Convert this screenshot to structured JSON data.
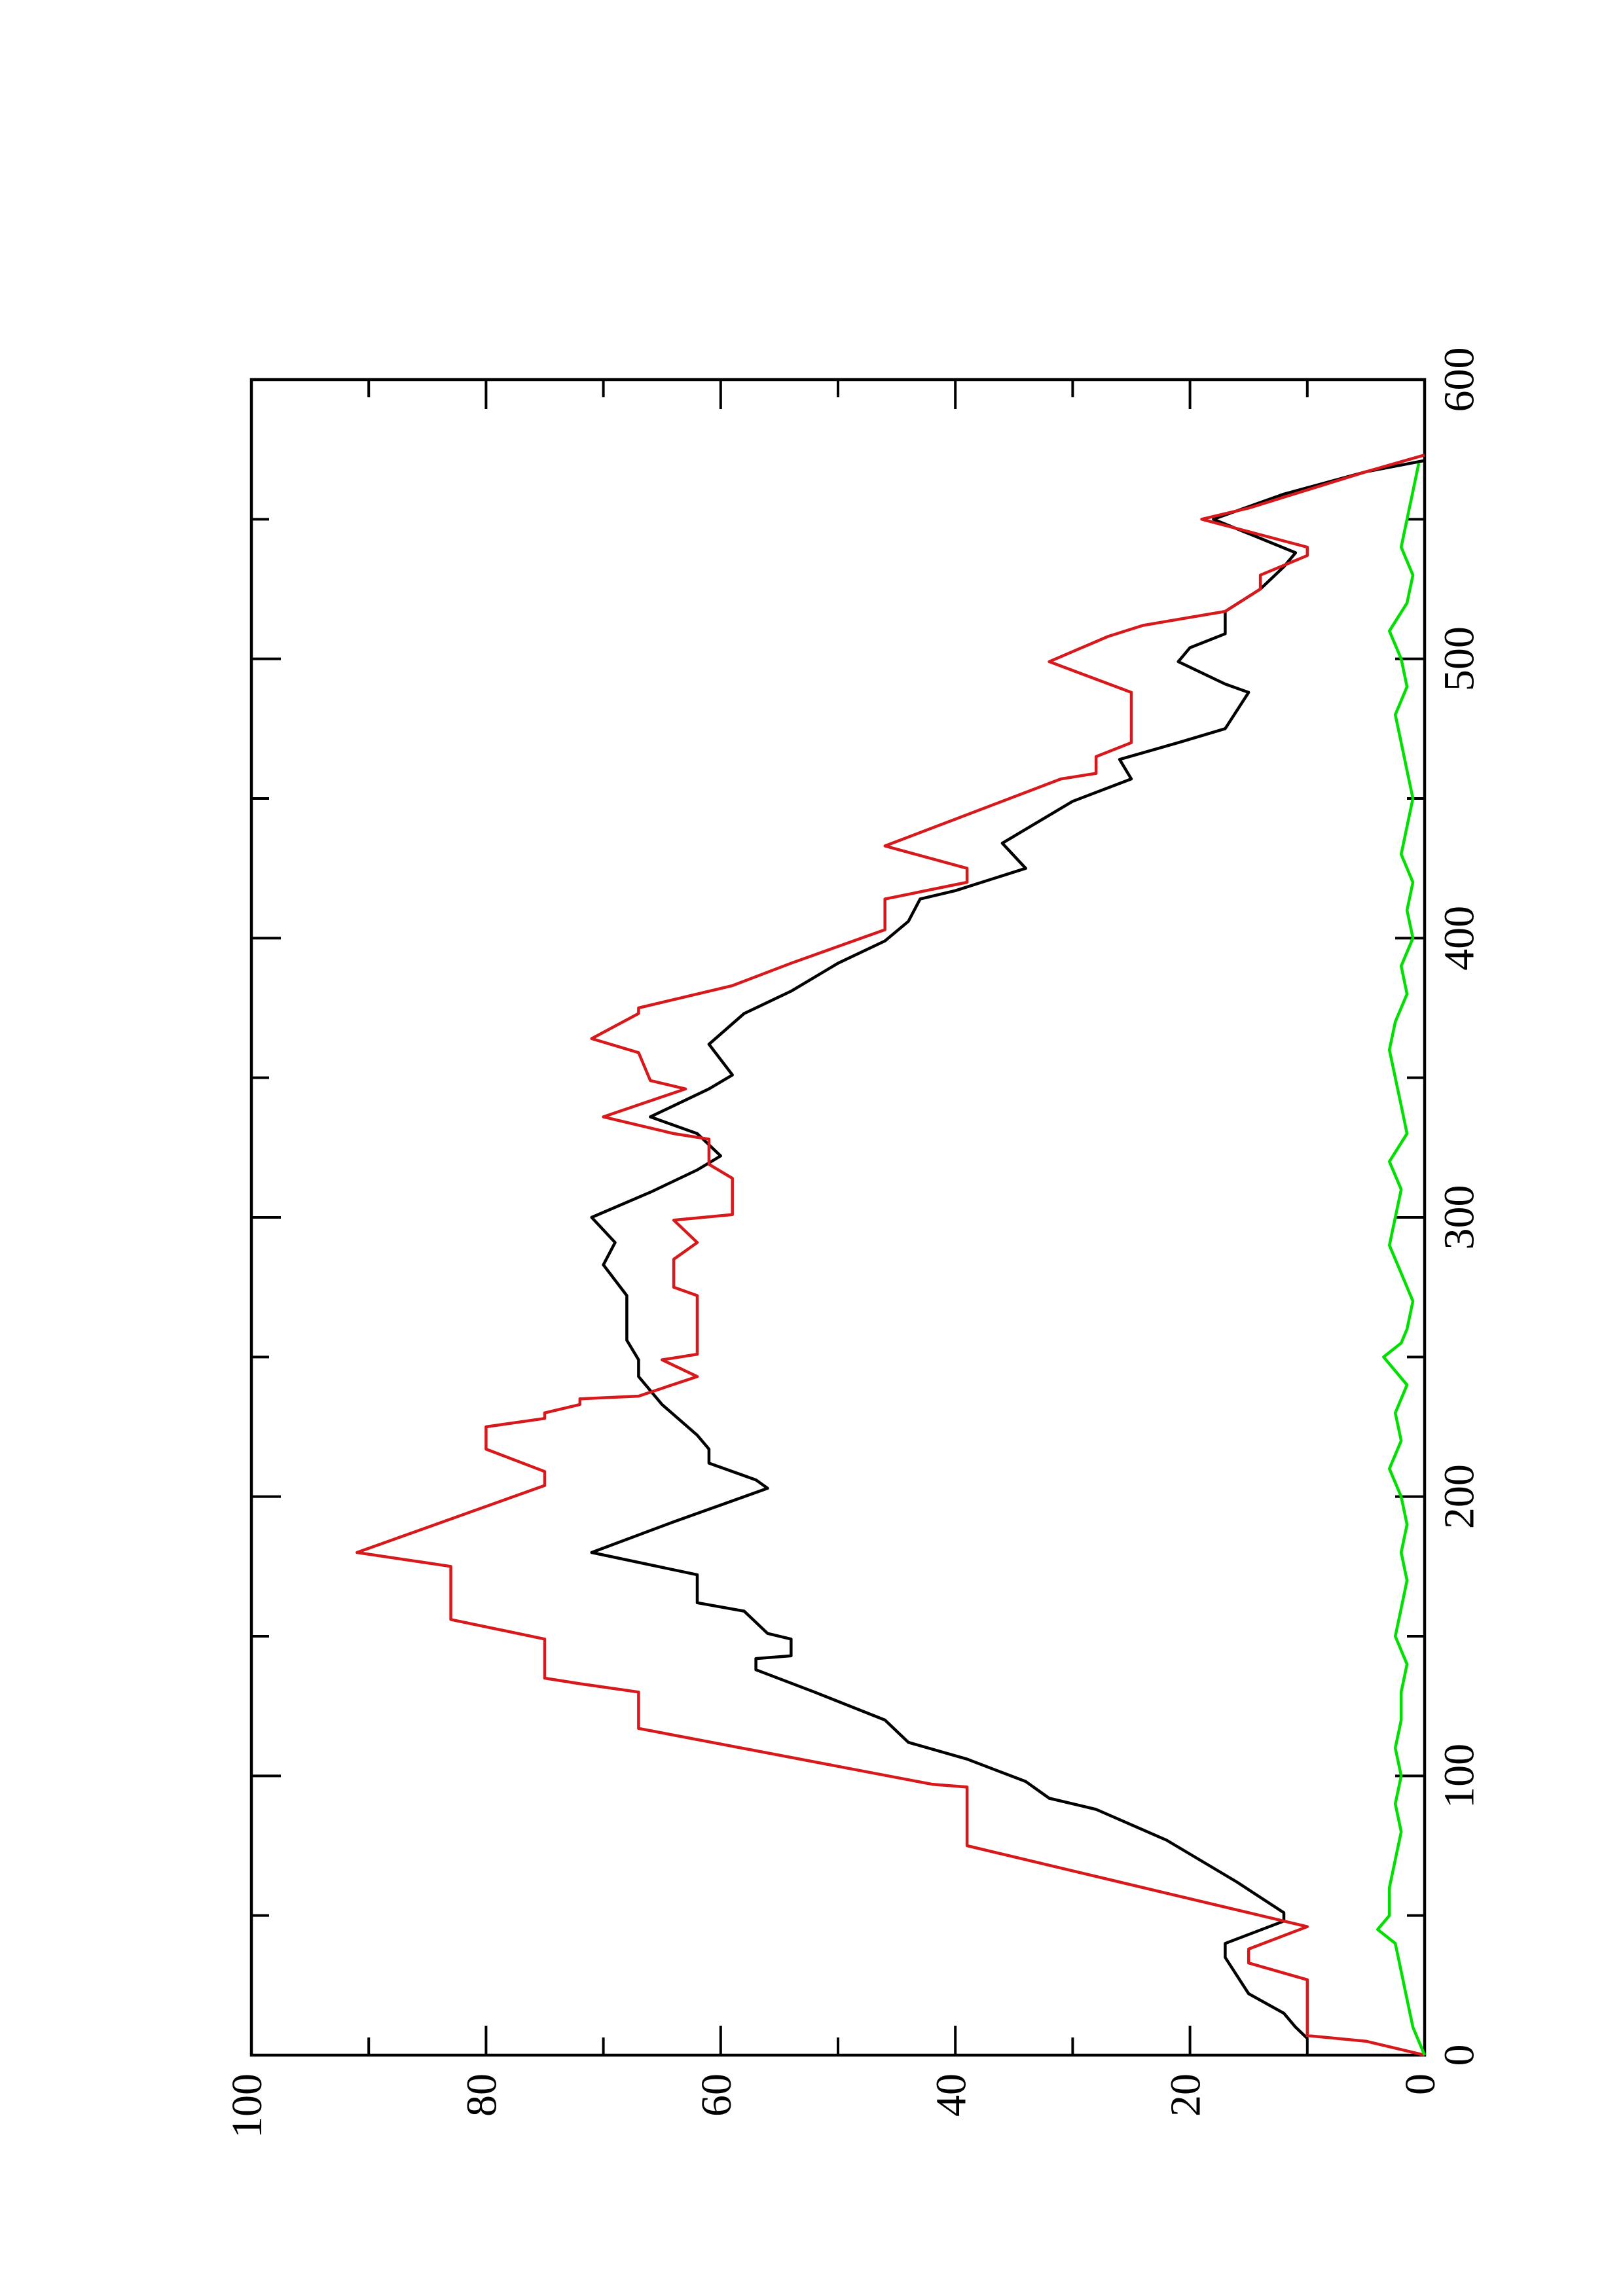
{
  "chart_data": {
    "type": "line",
    "xlim": [
      0,
      600
    ],
    "xticks": [
      0,
      100,
      200,
      300,
      400,
      500,
      600
    ],
    "x_minor_ticks": [
      50,
      150,
      250,
      350,
      450,
      550
    ],
    "ylim": [
      0,
      100
    ],
    "yticks": [
      0,
      20,
      40,
      60,
      80,
      100
    ],
    "y_minor_ticks": [
      10,
      30,
      50,
      70,
      90
    ],
    "rotated": true,
    "series": [
      {
        "color": "#000000",
        "x": [
          6,
          10,
          15,
          22,
          35,
          40,
          48,
          51,
          62,
          77,
          88,
          92,
          98,
          106,
          112,
          120,
          130,
          138,
          142,
          143,
          149,
          151,
          159,
          162,
          172,
          180,
          191,
          203,
          206,
          212,
          217,
          222,
          233,
          243,
          249,
          256,
          272,
          283,
          291,
          300,
          309,
          317,
          322,
          330,
          336,
          346,
          351,
          362,
          373,
          381,
          391,
          399,
          406,
          414,
          417,
          425,
          434,
          449,
          457,
          464,
          470,
          475,
          488,
          491,
          499,
          504,
          509,
          517,
          525,
          533,
          538,
          550,
          559,
          567,
          571
        ],
        "values": [
          10,
          11,
          12,
          15,
          17,
          17,
          12,
          12,
          16,
          22,
          28,
          32,
          34,
          39,
          44,
          46,
          52,
          57,
          57,
          54,
          54,
          56,
          58,
          62,
          62,
          71,
          64,
          56,
          57,
          61,
          61,
          62,
          65,
          67,
          67,
          68,
          68,
          70,
          69,
          71,
          66,
          62,
          60,
          62,
          66,
          61,
          59,
          61,
          58,
          54,
          50,
          46,
          44,
          43,
          40,
          34,
          36,
          30,
          25,
          26,
          21,
          17,
          15,
          17,
          21,
          20,
          17,
          17,
          14,
          12,
          11,
          18,
          12,
          5,
          0
        ]
      },
      {
        "color": "#d7191c",
        "x": [
          0,
          5,
          7,
          13,
          27,
          33,
          38,
          46,
          62,
          71,
          75,
          96,
          97,
          117,
          130,
          133,
          135,
          149,
          156,
          175,
          180,
          204,
          209,
          217,
          225,
          228,
          230,
          233,
          235,
          236,
          243,
          249,
          251,
          272,
          275,
          285,
          291,
          299,
          301,
          314,
          319,
          328,
          330,
          336,
          346,
          349,
          359,
          364,
          373,
          375,
          383,
          391,
          403,
          414,
          420,
          425,
          433,
          457,
          459,
          465,
          470,
          488,
          499,
          508,
          512,
          517,
          525,
          530,
          537,
          540,
          550,
          554,
          567,
          573
        ],
        "values": [
          0,
          5,
          10,
          10,
          10,
          15,
          15,
          10,
          26,
          35,
          39,
          39,
          42,
          67,
          67,
          72,
          75,
          75,
          83,
          83,
          91,
          75,
          75,
          80,
          80,
          75,
          75,
          72,
          72,
          67,
          62,
          65,
          62,
          62,
          64,
          64,
          62,
          64,
          59,
          59,
          61,
          61,
          64,
          70,
          63,
          66,
          67,
          71,
          67,
          67,
          59,
          54,
          46,
          46,
          39,
          39,
          46,
          31,
          28,
          28,
          25,
          25,
          32,
          27,
          24,
          17,
          14,
          14,
          10,
          10,
          19,
          15,
          5,
          0
        ]
      },
      {
        "color": "#00e000",
        "x": [
          0,
          10,
          20,
          30,
          40,
          45,
          50,
          60,
          70,
          80,
          90,
          100,
          110,
          120,
          130,
          140,
          150,
          160,
          170,
          180,
          190,
          200,
          210,
          220,
          230,
          240,
          250,
          255,
          260,
          270,
          280,
          290,
          300,
          310,
          320,
          330,
          340,
          350,
          360,
          370,
          380,
          390,
          400,
          410,
          420,
          430,
          440,
          450,
          460,
          470,
          480,
          490,
          500,
          510,
          520,
          530,
          540,
          550,
          560,
          570
        ],
        "values": [
          0,
          1,
          1.5,
          2,
          2.5,
          4,
          3,
          3,
          2.5,
          2,
          2.5,
          2,
          2.5,
          2,
          2,
          1.5,
          2.5,
          2,
          1.5,
          2,
          1.5,
          2,
          3,
          2,
          2.5,
          1.5,
          3.5,
          2,
          1.5,
          1,
          2,
          3,
          2.5,
          2,
          3,
          1.5,
          2,
          2.5,
          3,
          2.5,
          1.5,
          2,
          1,
          1.5,
          1,
          2,
          1.5,
          1,
          1.5,
          2,
          2.5,
          1.5,
          2,
          3,
          1.5,
          1,
          2,
          1.5,
          1,
          0.5
        ]
      }
    ]
  }
}
